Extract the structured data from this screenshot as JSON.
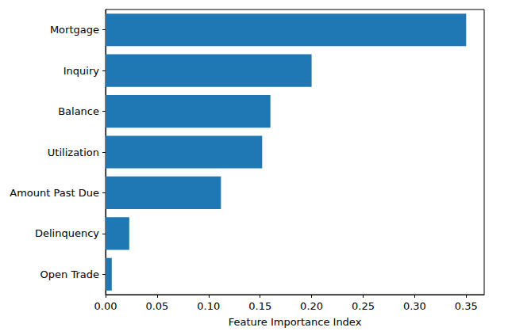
{
  "chart_data": {
    "type": "bar",
    "orientation": "horizontal",
    "x_label": "Feature Importance Index",
    "categories": [
      "Mortgage",
      "Inquiry",
      "Balance",
      "Utilization",
      "Amount Past Due",
      "Delinquency",
      "Open Trade"
    ],
    "values": [
      0.35,
      0.2,
      0.16,
      0.152,
      0.112,
      0.023,
      0.006
    ],
    "color": "#1f77b4",
    "xlim": [
      0,
      0.3675
    ],
    "xticks": [
      {
        "value": 0,
        "label": "0.00"
      },
      {
        "value": 0.05,
        "label": "0.05"
      },
      {
        "value": 0.1,
        "label": "0.10"
      },
      {
        "value": 0.15,
        "label": "0.15"
      },
      {
        "value": 0.2,
        "label": "0.20"
      },
      {
        "value": 0.25,
        "label": "0.25"
      },
      {
        "value": 0.3,
        "label": "0.30"
      },
      {
        "value": 0.35,
        "label": "0.35"
      }
    ],
    "grid": false
  }
}
